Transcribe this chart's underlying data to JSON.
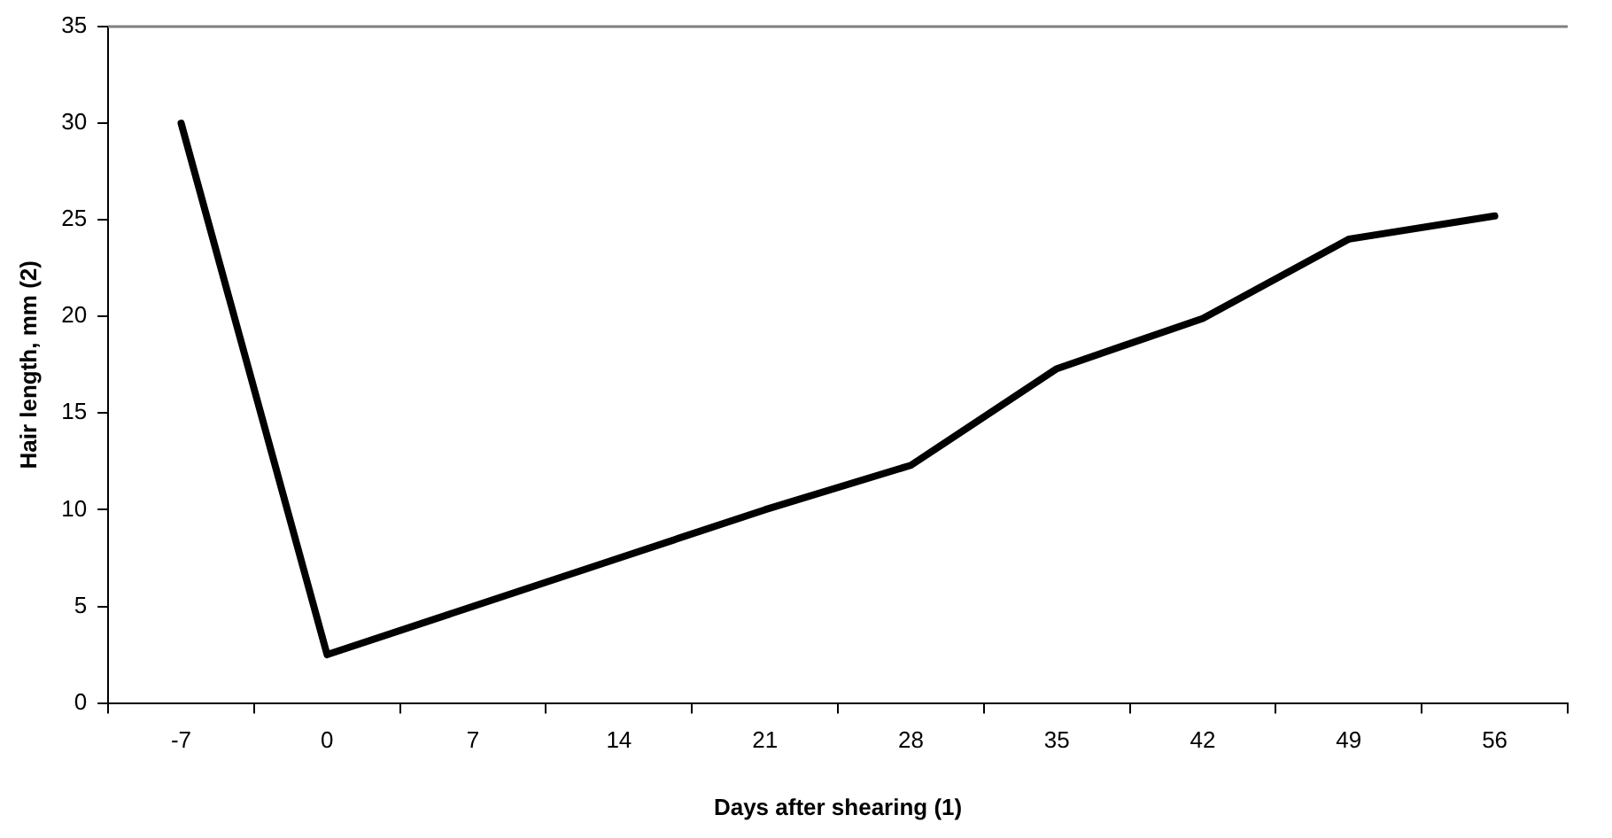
{
  "chart_data": {
    "type": "line",
    "xlabel": "Days after shearing (1)",
    "ylabel": "Hair length, mm (2)",
    "categories": [
      "-7",
      "0",
      "7",
      "14",
      "21",
      "28",
      "35",
      "42",
      "49",
      "56"
    ],
    "series": [
      {
        "color": "#000000",
        "values": [
          30,
          2.5,
          5,
          7.5,
          10,
          12.3,
          17.3,
          19.9,
          24,
          25.2
        ]
      }
    ],
    "ylim": [
      0,
      35
    ],
    "yticks": [
      0,
      5,
      10,
      15,
      20,
      25,
      30,
      35
    ],
    "grid": false,
    "legend": false,
    "marker": "none",
    "line_style": "solid"
  }
}
